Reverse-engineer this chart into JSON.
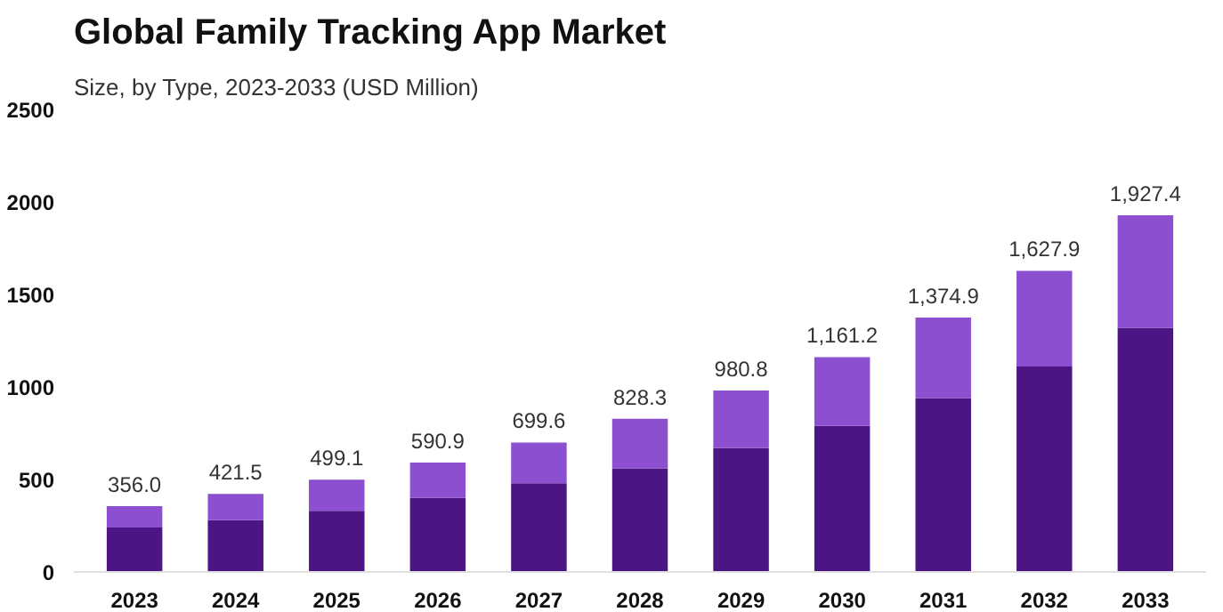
{
  "chart_data": {
    "type": "bar",
    "title": "Global Family Tracking App Market",
    "subtitle": "Size, by Type, 2023-2033 (USD Million)",
    "categories": [
      "2023",
      "2024",
      "2025",
      "2026",
      "2027",
      "2028",
      "2029",
      "2030",
      "2031",
      "2032",
      "2033"
    ],
    "stacked": true,
    "series": [
      {
        "color": "#4b1583",
        "values": [
          240,
          280,
          330,
          400,
          480,
          560,
          670,
          790,
          940,
          1110,
          1320
        ]
      },
      {
        "color": "#8c4fd0",
        "values": [
          116.0,
          141.5,
          169.1,
          190.9,
          219.6,
          268.3,
          310.8,
          371.2,
          434.9,
          517.9,
          607.4
        ]
      }
    ],
    "totals": [
      "356.0",
      "421.5",
      "499.1",
      "590.9",
      "699.6",
      "828.3",
      "980.8",
      "1,161.2",
      "1,374.9",
      "1,627.9",
      "1,927.4"
    ],
    "ylim": [
      0,
      2500
    ],
    "yticks": [
      0,
      500,
      1000,
      1500,
      2000,
      2500
    ],
    "grid": false
  }
}
